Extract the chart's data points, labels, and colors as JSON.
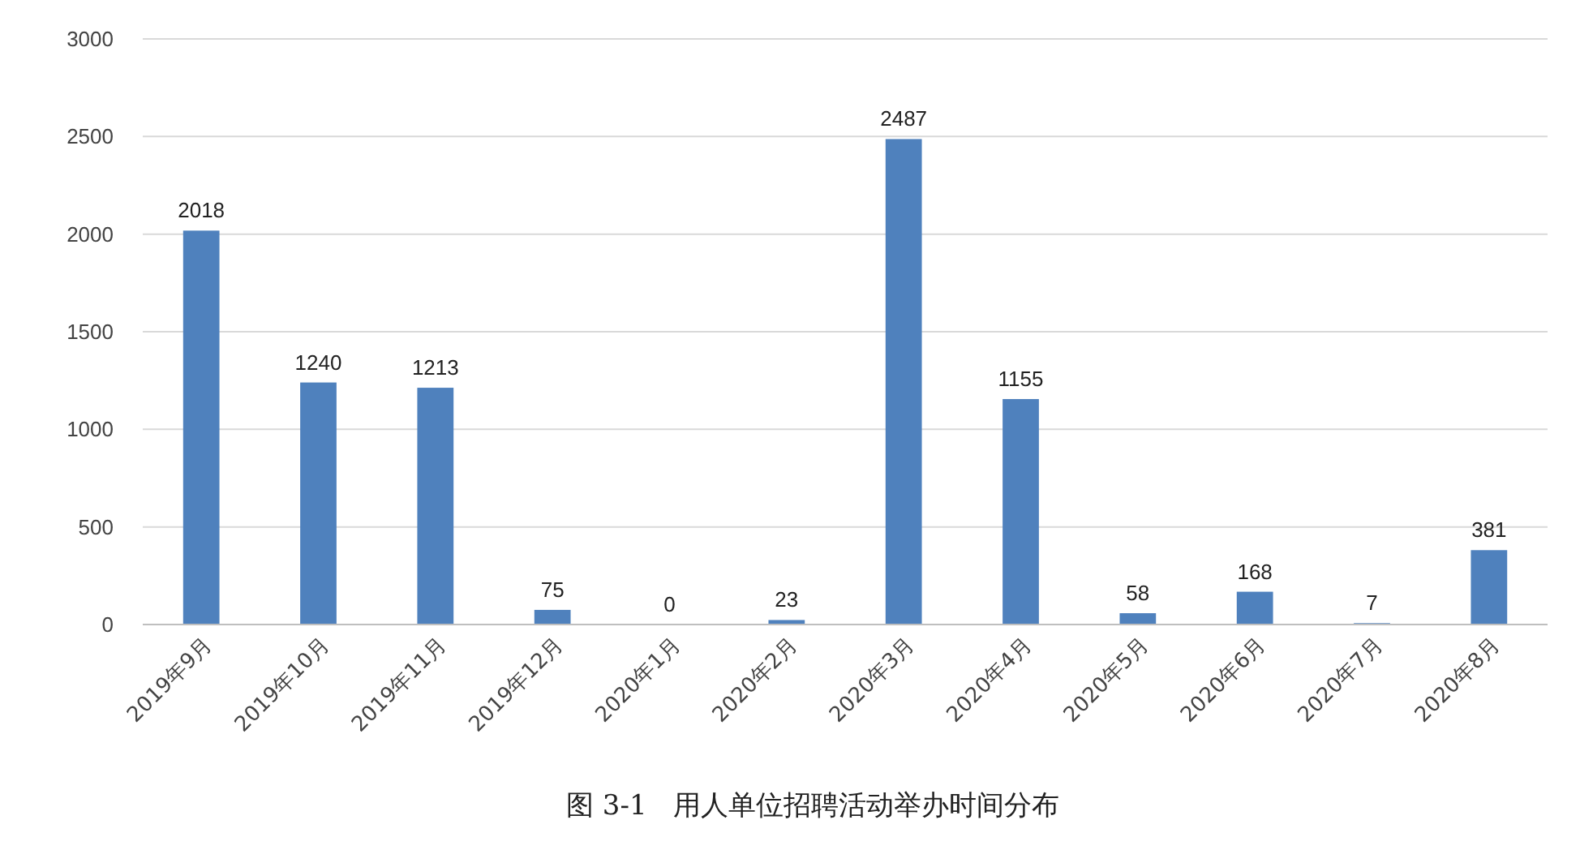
{
  "chart_data": {
    "type": "bar",
    "title": "图 3-1   用人单位招聘活动举办时间分布",
    "categories": [
      "2019年9月",
      "2019年10月",
      "2019年11月",
      "2019年12月",
      "2020年1月",
      "2020年2月",
      "2020年3月",
      "2020年4月",
      "2020年5月",
      "2020年6月",
      "2020年7月",
      "2020年8月"
    ],
    "values": [
      2018,
      1240,
      1213,
      75,
      0,
      23,
      2487,
      1155,
      58,
      168,
      7,
      381
    ],
    "color": "#4f81bd",
    "ylim": [
      0,
      3000
    ],
    "yticks": [
      0,
      500,
      1000,
      1500,
      2000,
      2500,
      3000
    ],
    "grid": "y",
    "data_labels": true
  }
}
